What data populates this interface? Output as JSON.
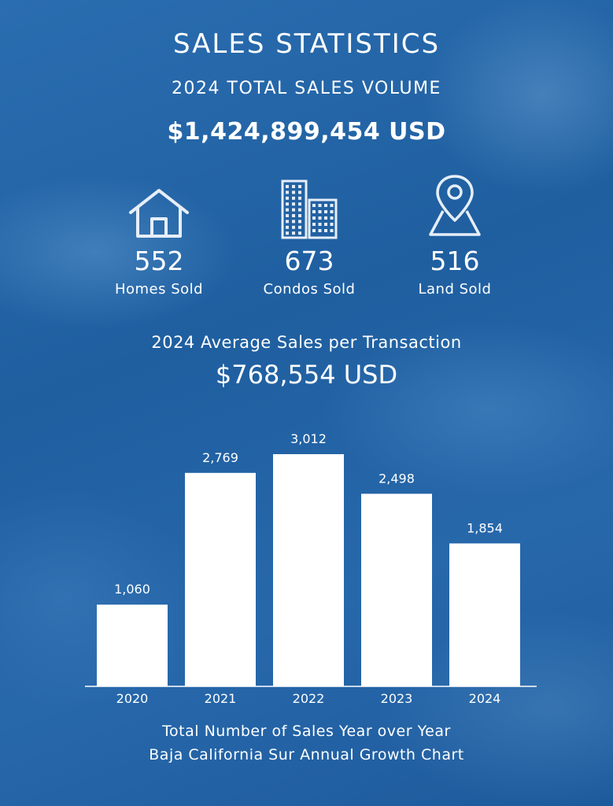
{
  "title": "SALES STATISTICS",
  "subtitle": "2024 TOTAL SALES VOLUME",
  "total_volume": "$1,424,899,454 USD",
  "stats": [
    {
      "icon": "house-icon",
      "value": "552",
      "label": "Homes Sold"
    },
    {
      "icon": "buildings-icon",
      "value": "673",
      "label": "Condos Sold"
    },
    {
      "icon": "map-pin-icon",
      "value": "516",
      "label": "Land Sold"
    }
  ],
  "average": {
    "label": "2024 Average Sales per Transaction",
    "value": "$768,554 USD"
  },
  "colors": {
    "background": "#2566a8",
    "bars": "#ffffff",
    "text": "#ffffff"
  },
  "chart_data": {
    "type": "bar",
    "categories": [
      "2020",
      "2021",
      "2022",
      "2023",
      "2024"
    ],
    "values": [
      1060,
      2769,
      3012,
      2498,
      1854
    ],
    "value_labels": [
      "1,060",
      "2,769",
      "3,012",
      "2,498",
      "1,854"
    ],
    "title": "",
    "xlabel": "",
    "ylabel": "",
    "ylim": [
      0,
      3012
    ],
    "grid": false,
    "legend": "none",
    "caption": [
      "Total Number of Sales Year over Year",
      "Baja California Sur Annual Growth Chart"
    ]
  }
}
